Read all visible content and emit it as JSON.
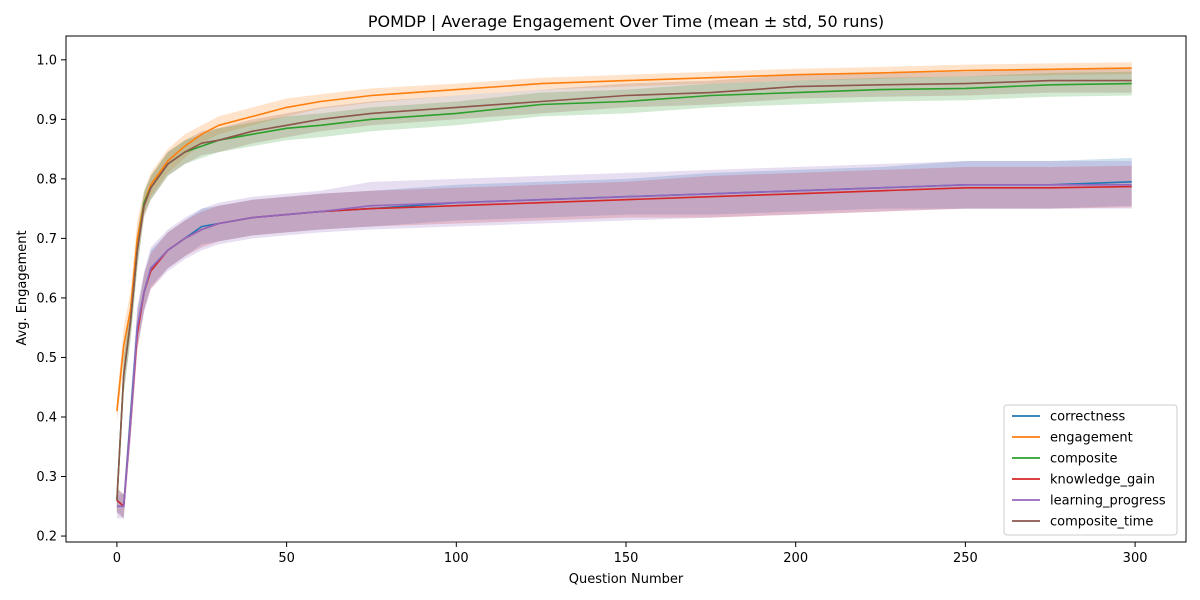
{
  "chart_data": {
    "type": "line",
    "title": "POMDP | Average Engagement Over Time (mean ± std, 50 runs)",
    "xlabel": "Question Number",
    "ylabel": "Avg. Engagement",
    "xlim": [
      -15,
      315
    ],
    "ylim": [
      0.19,
      1.04
    ],
    "xticks": [
      0,
      50,
      100,
      150,
      200,
      250,
      300
    ],
    "yticks": [
      0.2,
      0.3,
      0.4,
      0.5,
      0.6,
      0.7,
      0.8,
      0.9,
      1.0
    ],
    "ytick_labels": [
      "0.2",
      "0.3",
      "0.4",
      "0.5",
      "0.6",
      "0.7",
      "0.8",
      "0.9",
      "1.0"
    ],
    "grid": false,
    "legend_position": "lower-right",
    "shaded_band": "mean ± std",
    "x": [
      0,
      2,
      4,
      6,
      8,
      10,
      15,
      20,
      25,
      30,
      40,
      50,
      60,
      75,
      100,
      125,
      150,
      175,
      200,
      225,
      250,
      275,
      299
    ],
    "series": [
      {
        "name": "correctness",
        "color": "#1f77b4",
        "values": [
          0.26,
          0.25,
          0.4,
          0.55,
          0.61,
          0.65,
          0.68,
          0.7,
          0.72,
          0.725,
          0.735,
          0.74,
          0.745,
          0.75,
          0.76,
          0.765,
          0.77,
          0.775,
          0.78,
          0.785,
          0.79,
          0.79,
          0.795
        ],
        "std": [
          0.02,
          0.02,
          0.03,
          0.03,
          0.03,
          0.03,
          0.03,
          0.03,
          0.03,
          0.03,
          0.03,
          0.03,
          0.03,
          0.03,
          0.03,
          0.03,
          0.03,
          0.035,
          0.035,
          0.035,
          0.04,
          0.04,
          0.04
        ]
      },
      {
        "name": "engagement",
        "color": "#ff7f0e",
        "values": [
          0.41,
          0.52,
          0.58,
          0.7,
          0.76,
          0.79,
          0.83,
          0.855,
          0.875,
          0.89,
          0.905,
          0.92,
          0.93,
          0.94,
          0.95,
          0.96,
          0.965,
          0.97,
          0.975,
          0.978,
          0.982,
          0.984,
          0.986
        ],
        "std": [
          0.02,
          0.03,
          0.03,
          0.03,
          0.02,
          0.02,
          0.02,
          0.02,
          0.015,
          0.015,
          0.015,
          0.015,
          0.012,
          0.012,
          0.01,
          0.01,
          0.01,
          0.01,
          0.01,
          0.01,
          0.01,
          0.01,
          0.01
        ]
      },
      {
        "name": "composite",
        "color": "#2ca02c",
        "values": [
          0.26,
          0.47,
          0.56,
          0.68,
          0.76,
          0.785,
          0.825,
          0.845,
          0.855,
          0.865,
          0.875,
          0.885,
          0.89,
          0.9,
          0.91,
          0.925,
          0.93,
          0.94,
          0.945,
          0.95,
          0.952,
          0.958,
          0.96
        ],
        "std": [
          0.02,
          0.03,
          0.03,
          0.03,
          0.02,
          0.02,
          0.02,
          0.02,
          0.02,
          0.02,
          0.02,
          0.02,
          0.02,
          0.02,
          0.02,
          0.02,
          0.02,
          0.02,
          0.02,
          0.02,
          0.02,
          0.02,
          0.02
        ]
      },
      {
        "name": "knowledge_gain",
        "color": "#d62728",
        "values": [
          0.26,
          0.25,
          0.39,
          0.54,
          0.61,
          0.645,
          0.68,
          0.7,
          0.715,
          0.725,
          0.735,
          0.74,
          0.745,
          0.75,
          0.755,
          0.76,
          0.765,
          0.77,
          0.775,
          0.78,
          0.785,
          0.785,
          0.787
        ],
        "std": [
          0.02,
          0.02,
          0.03,
          0.03,
          0.03,
          0.03,
          0.03,
          0.03,
          0.03,
          0.03,
          0.03,
          0.03,
          0.03,
          0.03,
          0.03,
          0.03,
          0.03,
          0.035,
          0.035,
          0.035,
          0.035,
          0.035,
          0.035
        ]
      },
      {
        "name": "learning_progress",
        "color": "#9467bd",
        "values": [
          0.25,
          0.25,
          0.39,
          0.55,
          0.61,
          0.65,
          0.68,
          0.7,
          0.715,
          0.725,
          0.735,
          0.74,
          0.745,
          0.755,
          0.76,
          0.765,
          0.77,
          0.775,
          0.78,
          0.785,
          0.79,
          0.79,
          0.79
        ],
        "std": [
          0.02,
          0.02,
          0.03,
          0.035,
          0.035,
          0.035,
          0.035,
          0.035,
          0.035,
          0.035,
          0.035,
          0.035,
          0.035,
          0.04,
          0.04,
          0.04,
          0.04,
          0.04,
          0.04,
          0.04,
          0.04,
          0.04,
          0.04
        ]
      },
      {
        "name": "composite_time",
        "color": "#8c564b",
        "values": [
          0.26,
          0.47,
          0.56,
          0.68,
          0.755,
          0.785,
          0.825,
          0.845,
          0.86,
          0.865,
          0.88,
          0.89,
          0.9,
          0.91,
          0.92,
          0.93,
          0.94,
          0.945,
          0.955,
          0.958,
          0.96,
          0.965,
          0.965
        ],
        "std": [
          0.02,
          0.03,
          0.03,
          0.03,
          0.02,
          0.02,
          0.02,
          0.02,
          0.02,
          0.02,
          0.02,
          0.02,
          0.02,
          0.02,
          0.02,
          0.02,
          0.02,
          0.02,
          0.02,
          0.02,
          0.02,
          0.02,
          0.02
        ]
      }
    ]
  }
}
